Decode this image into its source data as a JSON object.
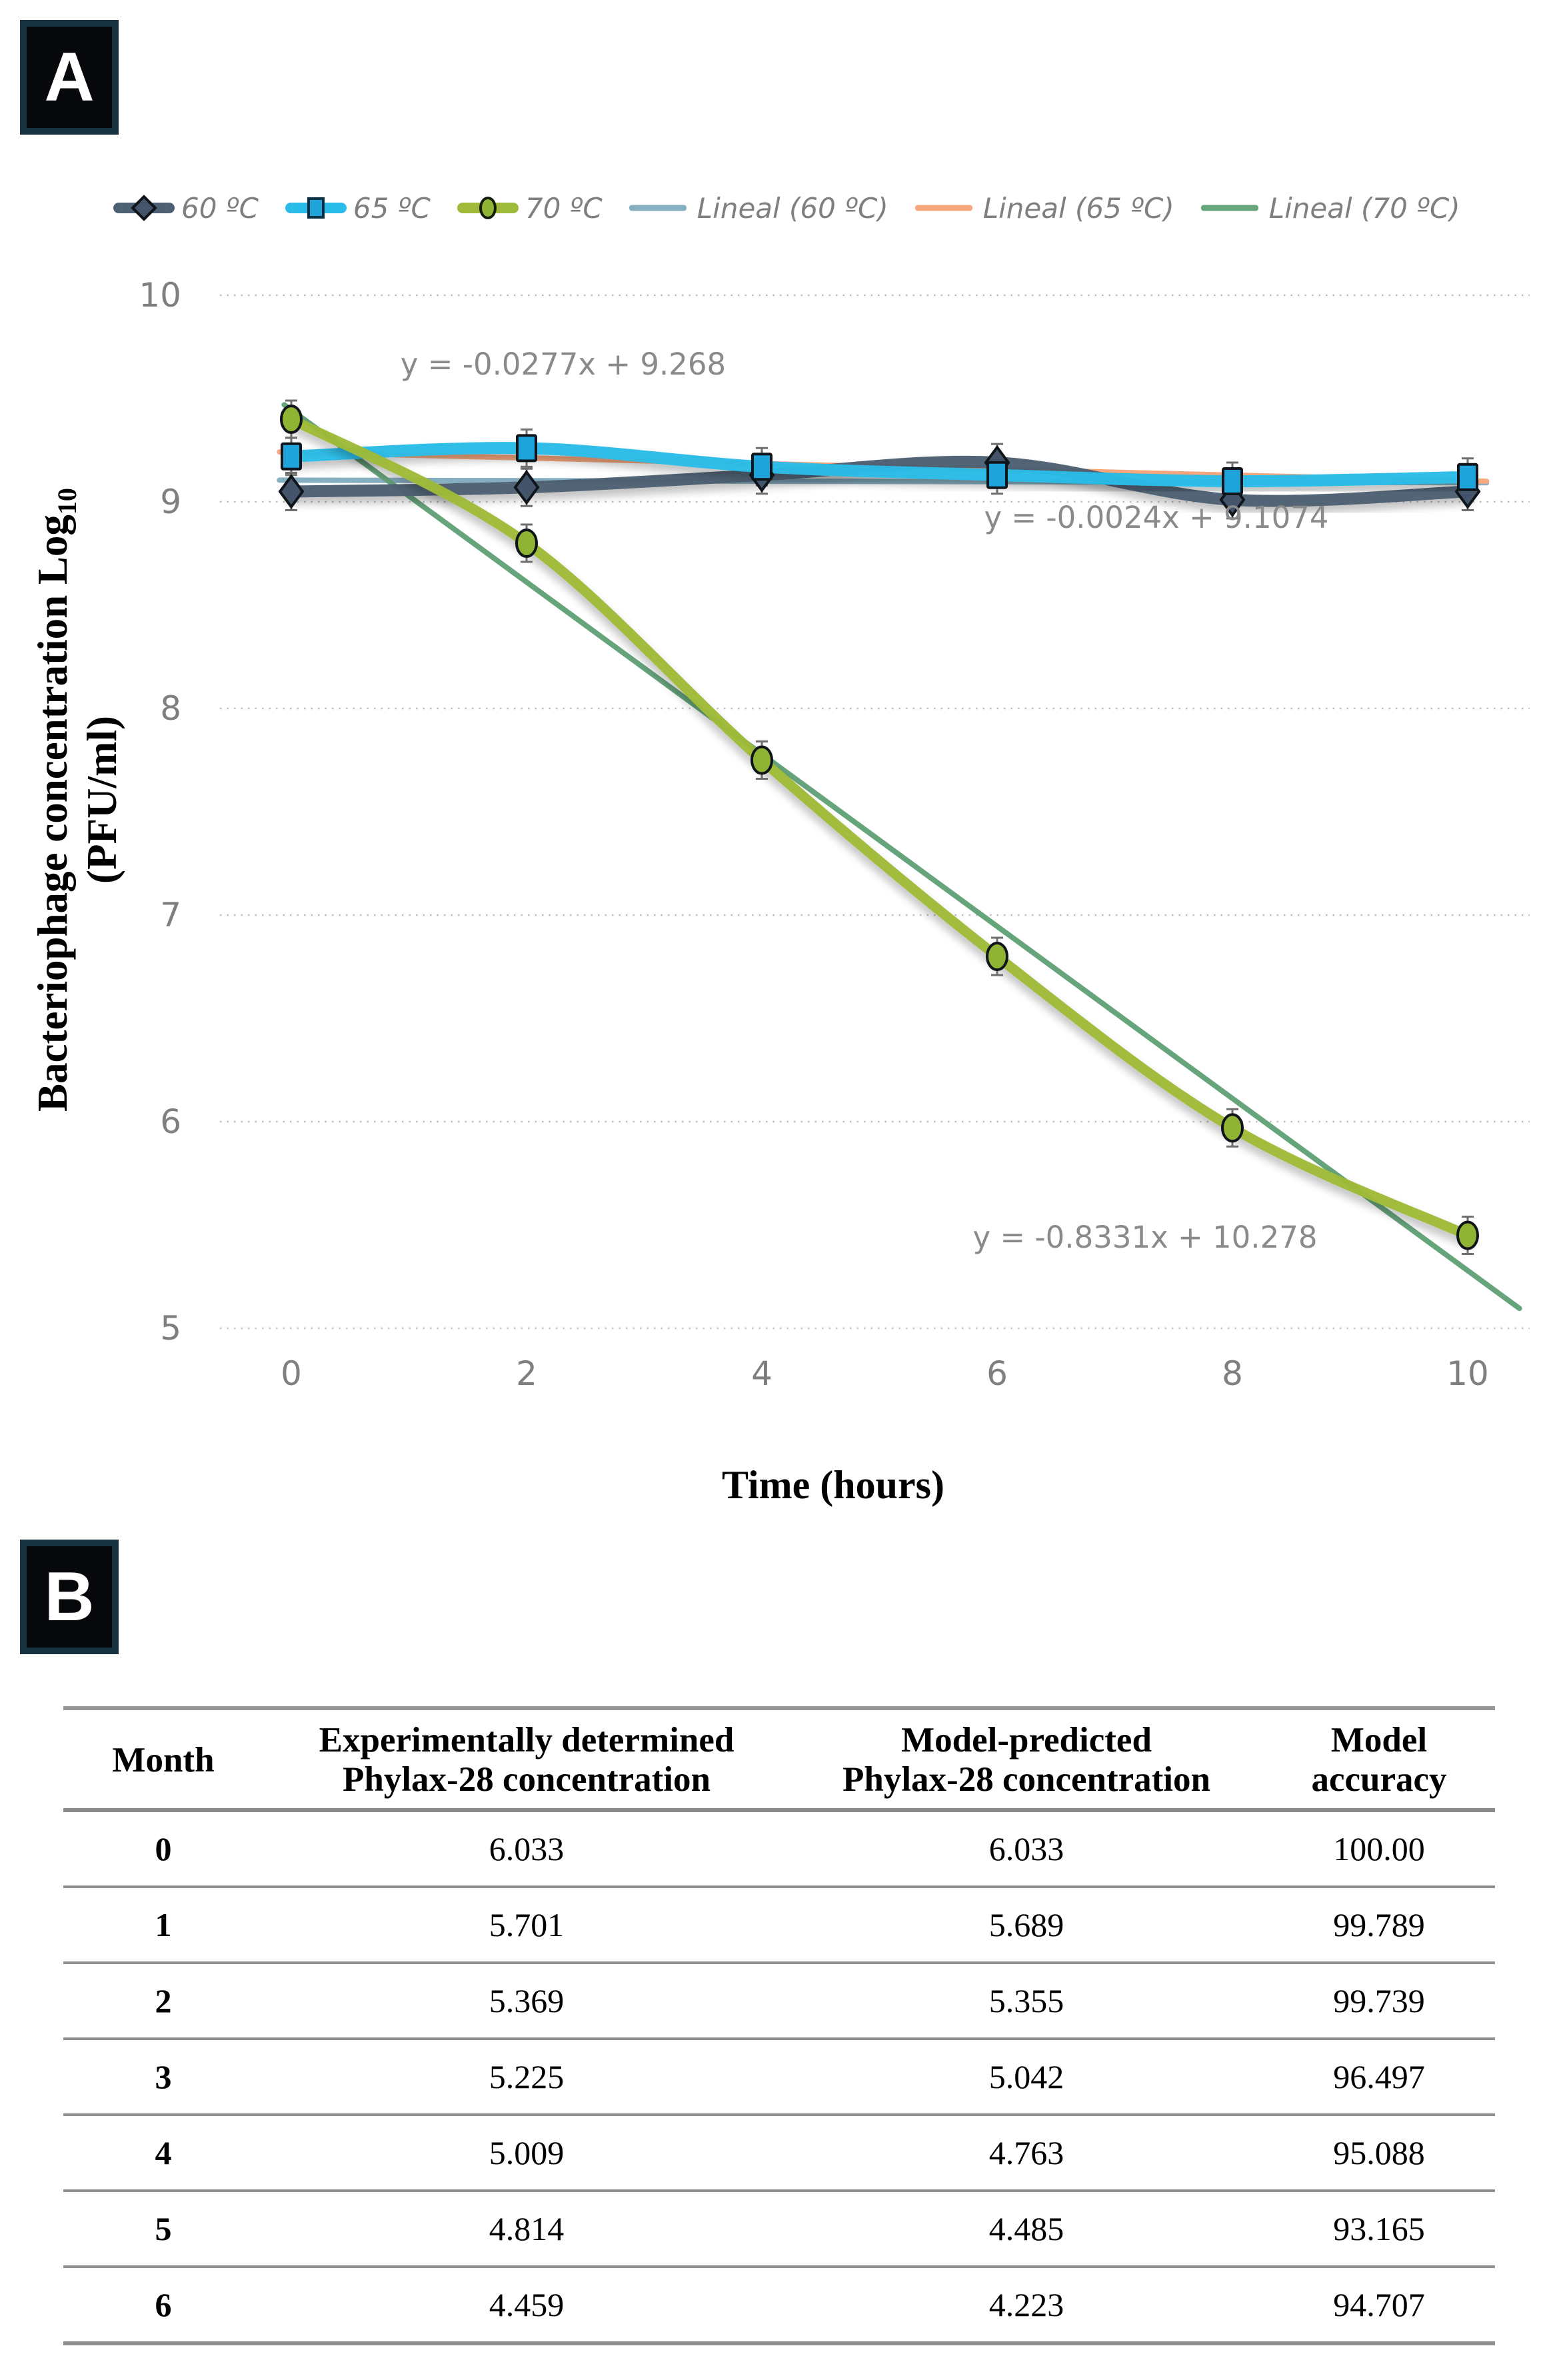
{
  "panel_a": {
    "label": "A"
  },
  "panel_b": {
    "label": "B"
  },
  "chart_data": {
    "type": "line",
    "xlabel": "Time (hours)",
    "ylabel_main": "Bacteriophage concentration Log",
    "ylabel_sub": "10",
    "ylabel_unit": "(PFU/ml)",
    "x_ticks": [
      "0",
      "2",
      "4",
      "6",
      "8",
      "10"
    ],
    "y_ticks": [
      10,
      9,
      8,
      7,
      6,
      5
    ],
    "ylim": [
      5,
      10
    ],
    "grid": "dotted horizontal",
    "legend_position": "top",
    "categories": [
      0,
      2,
      4,
      6,
      8,
      10
    ],
    "series": [
      {
        "name": "60 ºC",
        "marker": "diamond",
        "color": "#4E6172",
        "marker_fill": "#44546A",
        "values": [
          9.05,
          9.07,
          9.13,
          9.19,
          9.01,
          9.05
        ]
      },
      {
        "name": "65 ºC",
        "marker": "square",
        "color": "#29BCE8",
        "marker_fill": "#1FA3DB",
        "values": [
          9.22,
          9.26,
          9.17,
          9.13,
          9.1,
          9.12
        ]
      },
      {
        "name": "70 ºC",
        "marker": "circle",
        "color": "#9FBA39",
        "marker_fill": "#8FB332",
        "values": [
          9.4,
          8.8,
          7.75,
          6.8,
          5.97,
          5.45
        ]
      }
    ],
    "trendlines": [
      {
        "name": "Lineal (60 ºC)",
        "color": "#87AFC2",
        "slope": -0.0024,
        "intercept": 9.1074,
        "equation": "y = -0.0024x + 9.1074"
      },
      {
        "name": "Lineal (65 ºC)",
        "color": "#F7A87E",
        "slope": -0.0277,
        "intercept": 9.268,
        "equation": "y = -0.0277x + 9.268"
      },
      {
        "name": "Lineal (70 ºC)",
        "color": "#66A47C",
        "slope": -0.8331,
        "intercept": 10.278,
        "equation": "y = -0.8331x + 10.278"
      }
    ],
    "annotations": [
      {
        "text": "y = -0.0277x + 9.268",
        "x": 845,
        "y": 182
      },
      {
        "text": "y = -0.0024x + 9.1074",
        "x": 1735,
        "y": 412
      },
      {
        "text": "y = -0.8331x + 10.278",
        "x": 1718,
        "y": 1492
      }
    ]
  },
  "table": {
    "headers": [
      [
        "Month"
      ],
      [
        "Experimentally determined",
        "Phylax-28 concentration"
      ],
      [
        "Model-predicted",
        "Phylax-28 concentration"
      ],
      [
        "Model",
        "accuracy"
      ]
    ],
    "rows": [
      [
        "0",
        "6.033",
        "6.033",
        "100.00"
      ],
      [
        "1",
        "5.701",
        "5.689",
        "99.789"
      ],
      [
        "2",
        "5.369",
        "5.355",
        "99.739"
      ],
      [
        "3",
        "5.225",
        "5.042",
        "96.497"
      ],
      [
        "4",
        "5.009",
        "4.763",
        "95.088"
      ],
      [
        "5",
        "4.814",
        "4.485",
        "93.165"
      ],
      [
        "6",
        "4.459",
        "4.223",
        "94.707"
      ]
    ]
  }
}
